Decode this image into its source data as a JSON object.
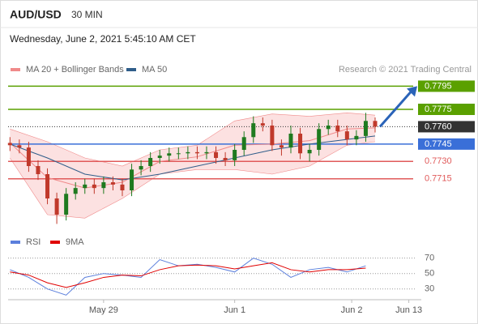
{
  "header": {
    "symbol": "AUD/USD",
    "interval": "30 MIN",
    "timestamp": "Wednesday, June 2, 2021 5:45:10 AM CET",
    "credit": "Research © 2021 Trading Central"
  },
  "chart_data": [
    {
      "type": "candlestick",
      "xlim": [
        -0.2,
        43.5
      ],
      "ylim": [
        0.767,
        0.7803
      ],
      "up_color": "#1f7a1f",
      "down_color": "#c0392b",
      "open": [
        0.7746,
        0.7744,
        0.7742,
        0.7726,
        0.7719,
        0.7698,
        0.7684,
        0.7702,
        0.7707,
        0.771,
        0.7707,
        0.7712,
        0.771,
        0.7705,
        0.7723,
        0.7726,
        0.7733,
        0.7735,
        0.7737,
        0.7737,
        0.7738,
        0.7737,
        0.7738,
        0.7733,
        0.7731,
        0.774,
        0.7751,
        0.7763,
        0.7761,
        0.7744,
        0.7742,
        0.7754,
        0.7737,
        0.774,
        0.7758,
        0.7761,
        0.7756,
        0.7749,
        0.7752,
        0.7765
      ],
      "high": [
        0.7751,
        0.7749,
        0.7747,
        0.7731,
        0.7724,
        0.7703,
        0.7707,
        0.7712,
        0.7715,
        0.7715,
        0.7717,
        0.7717,
        0.7715,
        0.7728,
        0.7731,
        0.7738,
        0.774,
        0.7742,
        0.7742,
        0.7743,
        0.7743,
        0.7743,
        0.7743,
        0.7738,
        0.7745,
        0.7756,
        0.7769,
        0.7768,
        0.7766,
        0.7749,
        0.7761,
        0.7759,
        0.7745,
        0.7763,
        0.7766,
        0.7766,
        0.7761,
        0.7757,
        0.7772,
        0.7768
      ],
      "low": [
        0.7739,
        0.7737,
        0.7721,
        0.7714,
        0.7693,
        0.7676,
        0.7679,
        0.7697,
        0.7702,
        0.7702,
        0.7702,
        0.7705,
        0.77,
        0.77,
        0.7718,
        0.7721,
        0.7728,
        0.773,
        0.7732,
        0.7732,
        0.7732,
        0.7732,
        0.7728,
        0.7726,
        0.7726,
        0.7735,
        0.7746,
        0.7756,
        0.7739,
        0.7735,
        0.7737,
        0.7732,
        0.773,
        0.7735,
        0.7753,
        0.7751,
        0.7744,
        0.7744,
        0.7747,
        0.7755
      ],
      "close": [
        0.7744,
        0.7742,
        0.7726,
        0.7719,
        0.7698,
        0.7684,
        0.7702,
        0.7707,
        0.771,
        0.7707,
        0.7712,
        0.771,
        0.7705,
        0.7723,
        0.7726,
        0.7733,
        0.7735,
        0.7737,
        0.7737,
        0.7738,
        0.7737,
        0.7738,
        0.7733,
        0.7731,
        0.774,
        0.7751,
        0.7763,
        0.7761,
        0.7744,
        0.7742,
        0.7754,
        0.7737,
        0.774,
        0.7758,
        0.7761,
        0.7756,
        0.7749,
        0.7752,
        0.7765,
        0.776
      ],
      "overlays": [
        {
          "name": "MA 20 + Bollinger Bands",
          "color": "#f08a8a",
          "band_color": "#fbd9d9",
          "x": [
            0,
            4,
            8,
            12,
            16,
            20,
            24,
            28,
            32,
            36,
            39
          ],
          "values": [
            0.7746,
            0.7716,
            0.7707,
            0.7712,
            0.773,
            0.7734,
            0.7744,
            0.7745,
            0.7748,
            0.7758,
            0.7759
          ],
          "upper": [
            0.7758,
            0.7747,
            0.7733,
            0.7726,
            0.774,
            0.7744,
            0.7765,
            0.7771,
            0.7769,
            0.7772,
            0.777
          ],
          "lower": [
            0.7733,
            0.7684,
            0.7681,
            0.7698,
            0.7719,
            0.7723,
            0.7723,
            0.7719,
            0.7726,
            0.7744,
            0.7747
          ]
        },
        {
          "name": "MA 50",
          "color": "#2f5d8a",
          "x": [
            0,
            4,
            8,
            12,
            16,
            20,
            24,
            28,
            32,
            36,
            39
          ],
          "values": [
            0.7745,
            0.7733,
            0.7719,
            0.7714,
            0.7719,
            0.7726,
            0.7733,
            0.774,
            0.7745,
            0.7749,
            0.7752
          ]
        }
      ],
      "levels": [
        {
          "value": 0.7795,
          "label": "0.7795",
          "color": "#5aa000",
          "label_box": true,
          "dash": false
        },
        {
          "value": 0.7775,
          "label": "0.7775",
          "color": "#5aa000",
          "label_box": true,
          "dash": false
        },
        {
          "value": 0.776,
          "label": "0.7760",
          "color": "#333333",
          "label_box": true,
          "dash": true
        },
        {
          "value": 0.7745,
          "label": "0.7745",
          "color": "#3a6fd8",
          "label_box": true,
          "dash": false
        },
        {
          "value": 0.773,
          "label": "0.7730",
          "color": "#e05a5a",
          "label_box": false,
          "dash": false
        },
        {
          "value": 0.7715,
          "label": "0.7715",
          "color": "#e05a5a",
          "label_box": false,
          "dash": false
        }
      ]
    },
    {
      "type": "line",
      "xlim": [
        -0.2,
        43.5
      ],
      "ylim": [
        15,
        77
      ],
      "yticks": [
        30,
        50,
        70
      ],
      "xticks": [
        {
          "value": 10,
          "label": "May 29"
        },
        {
          "value": 24,
          "label": "Jun 1"
        },
        {
          "value": 36.5,
          "label": "Jun 2"
        },
        {
          "value": 42.6,
          "label": "Jun 13"
        }
      ],
      "series": [
        {
          "name": "RSI",
          "color": "#5b7fdc",
          "x": [
            0,
            2,
            4,
            6,
            8,
            10,
            12,
            14,
            16,
            18,
            20,
            22,
            24,
            26,
            28,
            30,
            32,
            34,
            36,
            38
          ],
          "values": [
            55,
            45,
            30,
            22,
            45,
            50,
            48,
            45,
            68,
            60,
            62,
            58,
            52,
            70,
            62,
            45,
            55,
            58,
            52,
            60
          ]
        },
        {
          "name": "9MA",
          "color": "#e00000",
          "x": [
            0,
            2,
            4,
            6,
            8,
            10,
            12,
            14,
            16,
            18,
            20,
            22,
            24,
            26,
            28,
            30,
            32,
            34,
            36,
            38
          ],
          "values": [
            52,
            48,
            38,
            32,
            38,
            45,
            48,
            47,
            55,
            60,
            61,
            60,
            56,
            60,
            64,
            55,
            52,
            55,
            55,
            57
          ]
        }
      ]
    }
  ]
}
